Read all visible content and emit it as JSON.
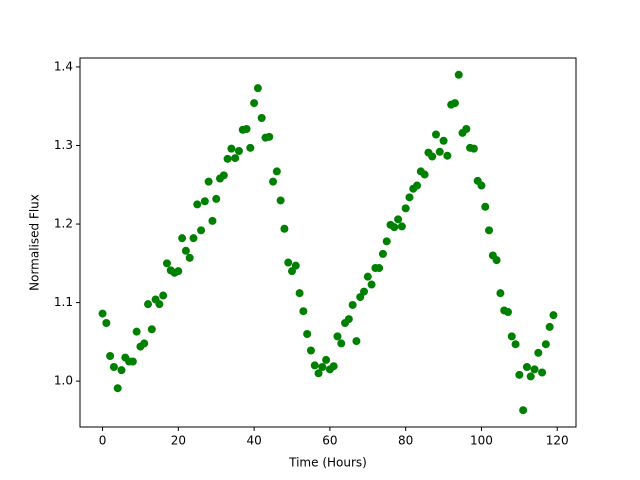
{
  "chart_data": {
    "type": "scatter",
    "x_label": "Time (Hours)",
    "y_label": "Normalised Flux",
    "color": "#008000",
    "x": [
      0,
      1,
      2,
      3,
      4,
      5,
      6,
      7,
      8,
      9,
      10,
      11,
      12,
      13,
      14,
      15,
      16,
      17,
      18,
      19,
      20,
      21,
      22,
      23,
      24,
      25,
      26,
      27,
      28,
      29,
      30,
      31,
      32,
      33,
      34,
      35,
      36,
      37,
      38,
      39,
      40,
      41,
      42,
      43,
      44,
      45,
      46,
      47,
      48,
      49,
      50,
      51,
      52,
      53,
      54,
      55,
      56,
      57,
      58,
      59,
      60,
      61,
      62,
      63,
      64,
      65,
      66,
      67,
      68,
      69,
      70,
      71,
      72,
      73,
      74,
      75,
      76,
      77,
      78,
      79,
      80,
      81,
      82,
      83,
      84,
      85,
      86,
      87,
      88,
      89,
      90,
      91,
      92,
      93,
      94,
      95,
      96,
      97,
      98,
      99,
      100,
      101,
      102,
      103,
      104,
      105,
      106,
      107,
      108,
      109,
      110,
      111,
      112,
      113,
      114,
      115,
      116,
      117,
      118,
      119
    ],
    "values": [
      1.086,
      1.074,
      1.032,
      1.018,
      0.991,
      1.014,
      1.03,
      1.025,
      1.025,
      1.063,
      1.044,
      1.048,
      1.098,
      1.066,
      1.104,
      1.098,
      1.109,
      1.15,
      1.141,
      1.138,
      1.14,
      1.182,
      1.166,
      1.157,
      1.182,
      1.225,
      1.192,
      1.229,
      1.254,
      1.204,
      1.232,
      1.258,
      1.262,
      1.283,
      1.296,
      1.284,
      1.293,
      1.32,
      1.321,
      1.297,
      1.354,
      1.373,
      1.335,
      1.31,
      1.311,
      1.254,
      1.267,
      1.23,
      1.194,
      1.151,
      1.14,
      1.147,
      1.112,
      1.089,
      1.06,
      1.039,
      1.02,
      1.01,
      1.018,
      1.027,
      1.015,
      1.019,
      1.057,
      1.048,
      1.074,
      1.079,
      1.097,
      1.051,
      1.107,
      1.114,
      1.133,
      1.123,
      1.144,
      1.144,
      1.162,
      1.178,
      1.199,
      1.196,
      1.206,
      1.197,
      1.22,
      1.234,
      1.245,
      1.249,
      1.267,
      1.263,
      1.291,
      1.286,
      1.314,
      1.292,
      1.306,
      1.287,
      1.352,
      1.354,
      1.39,
      1.316,
      1.321,
      1.297,
      1.296,
      1.255,
      1.249,
      1.222,
      1.192,
      1.16,
      1.154,
      1.112,
      1.09,
      1.088,
      1.057,
      1.047,
      1.008,
      0.963,
      1.018,
      1.006,
      1.015,
      1.036,
      1.011,
      1.047,
      1.069,
      1.084
    ],
    "xlim": [
      -5.95,
      124.95
    ],
    "ylim": [
      0.9416,
      1.4114
    ],
    "xticks": [
      0,
      20,
      40,
      60,
      80,
      100,
      120
    ],
    "yticks": [
      {
        "value": 1,
        "label": "1.0"
      },
      1.1,
      1.2,
      1.3,
      1.4
    ]
  }
}
